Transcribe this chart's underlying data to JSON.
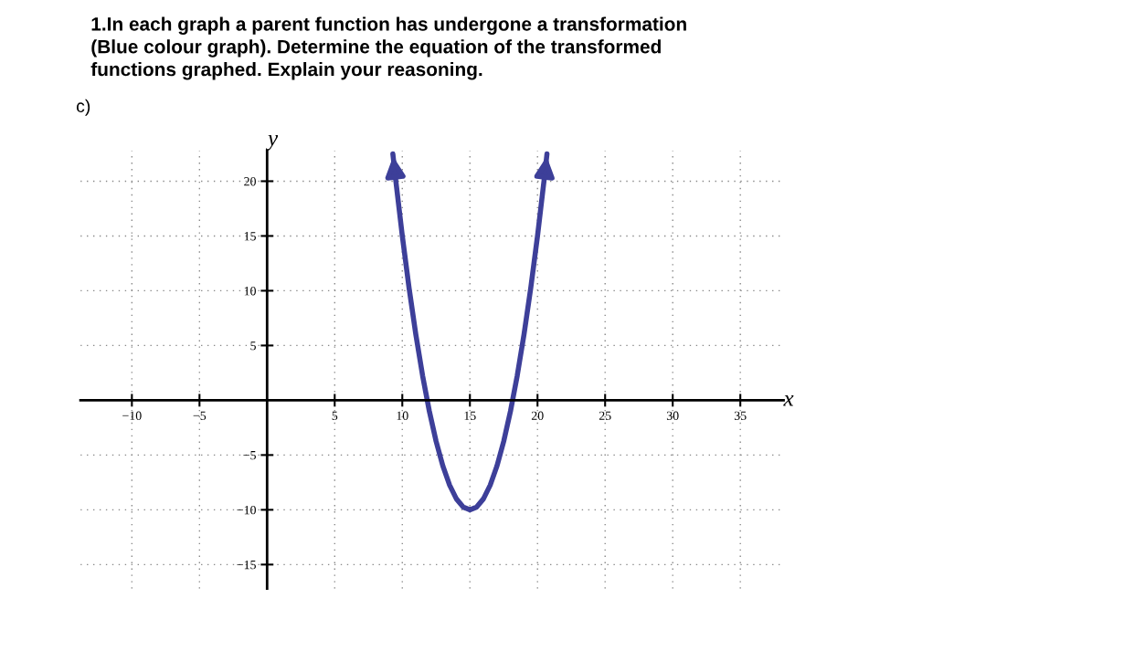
{
  "chart_data": {
    "type": "line",
    "title": "1.In each graph a parent function has undergone a transformation\n(Blue colour graph). Determine the equation of the transformed\nfunctions graphed. Explain your reasoning.",
    "annotations": [
      "c)"
    ],
    "xlabel": "x",
    "ylabel": "y",
    "x": [
      9.3,
      9.5,
      10,
      10.5,
      11,
      11.5,
      12,
      12.5,
      13,
      13.5,
      14,
      14.5,
      15,
      15.5,
      16,
      16.5,
      17,
      17.5,
      18,
      18.5,
      19,
      19.5,
      20,
      20.5,
      20.7
    ],
    "series": [
      {
        "color": "#3d3f99",
        "values": [
          22.5,
          20.25,
          15,
          10.25,
          6,
          2.25,
          -1,
          -3.75,
          -6,
          -7.75,
          -9,
          -9.75,
          -10,
          -9.75,
          -9,
          -7.75,
          -6,
          -3.75,
          -1,
          2.25,
          6,
          10.25,
          15,
          20.25,
          22.5
        ]
      }
    ],
    "xlim": [
      -13.8,
      38.2
    ],
    "ylim": [
      -17.2,
      22.8
    ],
    "xticks": [
      {
        "value": -10,
        "label": "−10"
      },
      {
        "value": -5,
        "label": "−5"
      },
      5,
      10,
      15,
      20,
      25,
      30,
      35
    ],
    "yticks": [
      {
        "value": -15,
        "label": "−15"
      },
      {
        "value": -10,
        "label": "−10"
      },
      {
        "value": -5,
        "label": "−5"
      },
      5,
      10,
      15,
      20
    ],
    "grid": true,
    "marker": "none",
    "line_style": "solid",
    "legend": false
  }
}
